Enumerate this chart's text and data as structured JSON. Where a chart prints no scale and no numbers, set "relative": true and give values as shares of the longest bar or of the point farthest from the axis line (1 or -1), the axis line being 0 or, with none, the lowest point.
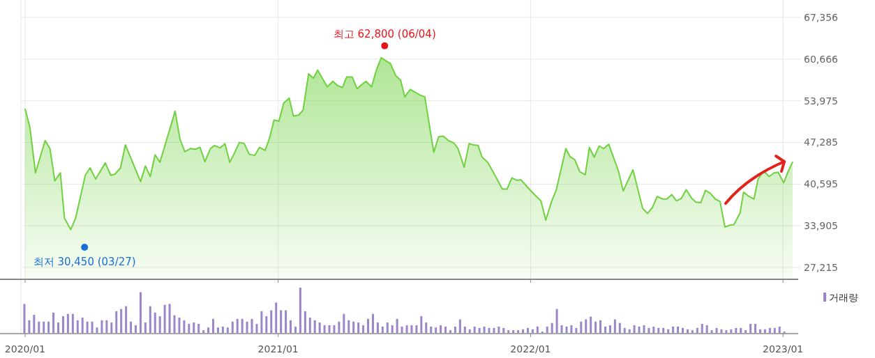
{
  "chart_data": [
    {
      "type": "area",
      "x": [
        "2020-01-01",
        "2020-01-08",
        "2020-01-16",
        "2020-01-30",
        "2020-02-06",
        "2020-02-13",
        "2020-02-21",
        "2020-02-27",
        "2020-03-07",
        "2020-03-14",
        "2020-03-28",
        "2020-04-04",
        "2020-04-12",
        "2020-04-26",
        "2020-05-04",
        "2020-05-10",
        "2020-05-18",
        "2020-05-25",
        "2020-06-16",
        "2020-06-23",
        "2020-06-30",
        "2020-07-07",
        "2020-07-14",
        "2020-08-05",
        "2020-08-12",
        "2020-08-19",
        "2020-08-27",
        "2020-09-03",
        "2020-09-10",
        "2020-09-17",
        "2020-09-25",
        "2020-10-01",
        "2020-10-09",
        "2020-10-16",
        "2020-10-23",
        "2020-10-29",
        "2020-11-06",
        "2020-11-13",
        "2020-11-20",
        "2020-11-28",
        "2020-12-05",
        "2020-12-13",
        "2020-12-19",
        "2020-12-26",
        "2021-01-02",
        "2021-01-09",
        "2021-01-17",
        "2021-01-23",
        "2021-01-31",
        "2021-02-06",
        "2021-02-14",
        "2021-02-21",
        "2021-02-27",
        "2021-03-13",
        "2021-03-21",
        "2021-03-28",
        "2021-04-04",
        "2021-04-10",
        "2021-04-18",
        "2021-04-25",
        "2021-05-02",
        "2021-05-08",
        "2021-05-16",
        "2021-05-23",
        "2021-05-30",
        "2021-06-07",
        "2021-06-12",
        "2021-06-20",
        "2021-06-27",
        "2021-07-03",
        "2021-07-11",
        "2021-07-17",
        "2021-07-25",
        "2021-08-01",
        "2021-08-14",
        "2021-08-21",
        "2021-08-28",
        "2021-09-04",
        "2021-09-12",
        "2021-09-18",
        "2021-09-27",
        "2021-10-04",
        "2021-10-10",
        "2021-10-17",
        "2021-10-23",
        "2021-10-31",
        "2021-11-07",
        "2021-11-13",
        "2021-11-21",
        "2021-11-28",
        "2021-12-05",
        "2021-12-12",
        "2021-12-18",
        "2021-12-26",
        "2022-01-05",
        "2022-01-16",
        "2022-01-23",
        "2022-01-31",
        "2022-02-07",
        "2022-02-21",
        "2022-02-27",
        "2022-03-06",
        "2022-03-13",
        "2022-03-21",
        "2022-03-27",
        "2022-04-03",
        "2022-04-10",
        "2022-04-17",
        "2022-04-24",
        "2022-05-08",
        "2022-05-15",
        "2022-05-29",
        "2022-06-12",
        "2022-06-19",
        "2022-06-26",
        "2022-07-03",
        "2022-07-11",
        "2022-07-17",
        "2022-07-24",
        "2022-07-31",
        "2022-08-07",
        "2022-08-14",
        "2022-08-22",
        "2022-08-28",
        "2022-09-04",
        "2022-09-11",
        "2022-09-18",
        "2022-09-25",
        "2022-10-02",
        "2022-10-09",
        "2022-10-16",
        "2022-10-22",
        "2022-10-31",
        "2022-11-05",
        "2022-11-13",
        "2022-11-20",
        "2022-11-26",
        "2022-12-04",
        "2022-12-12",
        "2022-12-19",
        "2022-12-25",
        "2023-01-02",
        "2023-01-08",
        "2023-01-15"
      ],
      "series": [
        {
          "color": "#6fd13f",
          "values": [
            52700,
            49700,
            42400,
            47600,
            46300,
            41100,
            42400,
            35100,
            33300,
            35100,
            42000,
            43200,
            41400,
            44000,
            42000,
            42200,
            43200,
            46900,
            41000,
            43500,
            41800,
            45300,
            44100,
            52300,
            47800,
            45800,
            46300,
            46200,
            46500,
            44200,
            46300,
            46800,
            46400,
            47100,
            44100,
            45400,
            47300,
            47100,
            45400,
            45200,
            46500,
            46000,
            47800,
            50900,
            50700,
            53600,
            54400,
            51500,
            51700,
            52500,
            58300,
            57600,
            58900,
            56200,
            57100,
            56400,
            56100,
            57800,
            57800,
            55900,
            56600,
            57100,
            56200,
            58900,
            60900,
            60300,
            60000,
            58000,
            57300,
            54600,
            55800,
            55400,
            54900,
            54600,
            45700,
            48200,
            48300,
            47600,
            47200,
            46300,
            43300,
            47100,
            46900,
            46800,
            44900,
            44100,
            42700,
            41500,
            39800,
            39800,
            41600,
            41200,
            41300,
            40300,
            39100,
            37900,
            34800,
            37700,
            39600,
            46300,
            45000,
            44500,
            42600,
            42100,
            46500,
            44900,
            46700,
            46300,
            47000,
            42700,
            39500,
            42900,
            36700,
            35900,
            36800,
            38600,
            38200,
            38200,
            38900,
            37900,
            38300,
            39700,
            38300,
            37700,
            37600,
            39600,
            39100,
            38200,
            37800,
            33700,
            34000,
            34100,
            36000,
            39300,
            38600,
            38200,
            41400,
            42700,
            41800,
            42400,
            42500,
            40800,
            42500,
            44200
          ]
        }
      ],
      "xlim": [
        "2019-12-26",
        "2023-01-19"
      ],
      "ylim": [
        25425,
        70150
      ],
      "xticks": [
        {
          "value": "2020-01",
          "label": null
        },
        {
          "value": "2021-01",
          "label": null
        },
        {
          "value": "2022-01",
          "label": null
        },
        {
          "value": "2023-01",
          "label": null
        }
      ],
      "yticks": [
        {
          "value": 27215,
          "label": "27,215"
        },
        {
          "value": 33905,
          "label": "33,905"
        },
        {
          "value": 40595,
          "label": "40,595"
        },
        {
          "value": 47285,
          "label": "47,285"
        },
        {
          "value": 53975,
          "label": "53,975"
        },
        {
          "value": 60666,
          "label": "60,666"
        },
        {
          "value": 67356,
          "label": "67,356"
        }
      ],
      "tick_labels": "y",
      "grid": true,
      "annotations": [
        {
          "text": "최고 62,800 (06/04)",
          "x": "2021-06-04",
          "y": 62800
        },
        {
          "text": "최저 30,450 (03/27)",
          "x": "2020-03-27",
          "y": 30450
        }
      ]
    },
    {
      "type": "bar",
      "relative": true,
      "legend": "top right",
      "x": [
        "2019-12-31",
        "2020-01-07",
        "2020-01-14",
        "2020-01-21",
        "2020-01-28",
        "2020-02-04",
        "2020-02-11",
        "2020-02-18",
        "2020-02-25",
        "2020-03-03",
        "2020-03-10",
        "2020-03-17",
        "2020-03-24",
        "2020-03-31",
        "2020-04-07",
        "2020-04-14",
        "2020-04-21",
        "2020-04-28",
        "2020-05-05",
        "2020-05-12",
        "2020-05-19",
        "2020-05-26",
        "2020-06-02",
        "2020-06-09",
        "2020-06-16",
        "2020-06-23",
        "2020-06-30",
        "2020-07-07",
        "2020-07-14",
        "2020-07-21",
        "2020-07-28",
        "2020-08-04",
        "2020-08-11",
        "2020-08-18",
        "2020-08-25",
        "2020-09-01",
        "2020-09-08",
        "2020-09-15",
        "2020-09-22",
        "2020-09-29",
        "2020-10-06",
        "2020-10-13",
        "2020-10-20",
        "2020-10-27",
        "2020-11-03",
        "2020-11-10",
        "2020-11-17",
        "2020-11-24",
        "2020-12-01",
        "2020-12-08",
        "2020-12-15",
        "2020-12-22",
        "2020-12-29",
        "2021-01-05",
        "2021-01-12",
        "2021-01-19",
        "2021-01-26",
        "2021-02-02",
        "2021-02-09",
        "2021-02-16",
        "2021-02-23",
        "2021-03-02",
        "2021-03-09",
        "2021-03-16",
        "2021-03-23",
        "2021-03-30",
        "2021-04-06",
        "2021-04-13",
        "2021-04-20",
        "2021-04-27",
        "2021-05-04",
        "2021-05-11",
        "2021-05-18",
        "2021-05-25",
        "2021-06-01",
        "2021-06-08",
        "2021-06-15",
        "2021-06-22",
        "2021-06-29",
        "2021-07-06",
        "2021-07-13",
        "2021-07-20",
        "2021-07-27",
        "2021-08-03",
        "2021-08-10",
        "2021-08-17",
        "2021-08-24",
        "2021-08-31",
        "2021-09-07",
        "2021-09-14",
        "2021-09-21",
        "2021-09-28",
        "2021-10-05",
        "2021-10-12",
        "2021-10-19",
        "2021-10-26",
        "2021-11-02",
        "2021-11-09",
        "2021-11-16",
        "2021-11-23",
        "2021-11-30",
        "2021-12-07",
        "2021-12-14",
        "2021-12-21",
        "2021-12-28",
        "2022-01-04",
        "2022-01-11",
        "2022-01-18",
        "2022-01-25",
        "2022-02-01",
        "2022-02-08",
        "2022-02-15",
        "2022-02-22",
        "2022-03-01",
        "2022-03-08",
        "2022-03-15",
        "2022-03-22",
        "2022-03-29",
        "2022-04-05",
        "2022-04-12",
        "2022-04-19",
        "2022-04-26",
        "2022-05-03",
        "2022-05-10",
        "2022-05-17",
        "2022-05-24",
        "2022-05-31",
        "2022-06-07",
        "2022-06-14",
        "2022-06-21",
        "2022-06-28",
        "2022-07-05",
        "2022-07-12",
        "2022-07-19",
        "2022-07-26",
        "2022-08-02",
        "2022-08-09",
        "2022-08-16",
        "2022-08-23",
        "2022-08-30",
        "2022-09-06",
        "2022-09-13",
        "2022-09-20",
        "2022-09-27",
        "2022-10-04",
        "2022-10-11",
        "2022-10-18",
        "2022-10-25",
        "2022-11-01",
        "2022-11-08",
        "2022-11-15",
        "2022-11-22",
        "2022-11-29",
        "2022-12-06",
        "2022-12-13",
        "2022-12-20",
        "2022-12-27",
        "2023-01-03"
      ],
      "series": [
        {
          "name": "거래량",
          "color": "#9b86c9",
          "values": [
            0.64,
            0.28,
            0.4,
            0.25,
            0.25,
            0.25,
            0.45,
            0.23,
            0.37,
            0.42,
            0.42,
            0.28,
            0.34,
            0.25,
            0.25,
            0.12,
            0.28,
            0.28,
            0.23,
            0.48,
            0.53,
            0.59,
            0.25,
            0.17,
            0.9,
            0.23,
            0.59,
            0.45,
            0.37,
            0.62,
            0.64,
            0.39,
            0.34,
            0.28,
            0.2,
            0.23,
            0.2,
            0.06,
            0.12,
            0.31,
            0.12,
            0.14,
            0.12,
            0.25,
            0.31,
            0.31,
            0.25,
            0.31,
            0.2,
            0.48,
            0.37,
            0.5,
            0.67,
            0.5,
            0.5,
            0.28,
            0.14,
            1,
            0.48,
            0.34,
            0.28,
            0.23,
            0.17,
            0.17,
            0.17,
            0.25,
            0.42,
            0.28,
            0.25,
            0.23,
            0.17,
            0.31,
            0.42,
            0.23,
            0.14,
            0.23,
            0.17,
            0.31,
            0.14,
            0.17,
            0.17,
            0.17,
            0.37,
            0.23,
            0.14,
            0.12,
            0.17,
            0.14,
            0.06,
            0.14,
            0.3,
            0.14,
            0.08,
            0.14,
            0.11,
            0.14,
            0.11,
            0.11,
            0.14,
            0.11,
            0.06,
            0.06,
            0.06,
            0.08,
            0.11,
            0.08,
            0.14,
            0.03,
            0.14,
            0.22,
            0.53,
            0.17,
            0.14,
            0.17,
            0.11,
            0.25,
            0.3,
            0.36,
            0.25,
            0.28,
            0.14,
            0.17,
            0.3,
            0.22,
            0.11,
            0.08,
            0.17,
            0.14,
            0.17,
            0.11,
            0.14,
            0.11,
            0.11,
            0.08,
            0.14,
            0.14,
            0.11,
            0.08,
            0.06,
            0.11,
            0.2,
            0.17,
            0.06,
            0.11,
            0.08,
            0.06,
            0.08,
            0.11,
            0.11,
            0.06,
            0.2,
            0.2,
            0.08,
            0.08,
            0.11,
            0.11,
            0.14,
            0.03
          ]
        }
      ],
      "xlim": [
        "2019-12-26",
        "2023-01-19"
      ],
      "xticks": [
        {
          "value": "2020-01",
          "label": "2020/01"
        },
        {
          "value": "2021-01",
          "label": "2021/01"
        },
        {
          "value": "2022-01",
          "label": "2022/01"
        },
        {
          "value": "2023-01",
          "label": "2023/01"
        }
      ]
    }
  ]
}
